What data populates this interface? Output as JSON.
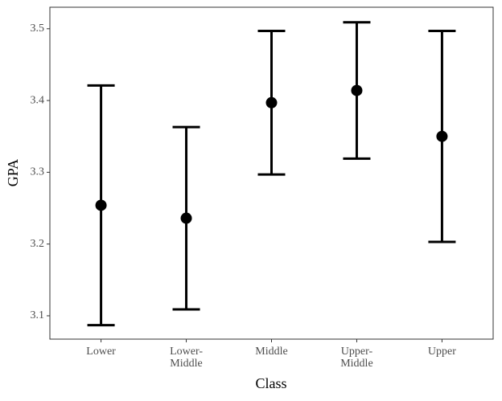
{
  "chart_data": {
    "type": "errorbar",
    "x_label": "Class",
    "y_label": "GPA",
    "categories": [
      "Lower",
      "Lower-\nMiddle",
      "Middle",
      "Upper-\nMiddle",
      "Upper"
    ],
    "values": [
      3.254,
      3.236,
      3.397,
      3.414,
      3.35
    ],
    "errors": [
      0.167,
      0.127,
      0.1,
      0.095,
      0.147
    ],
    "color": "#000000",
    "ylim": [
      3.0675,
      3.53
    ],
    "yticks": [
      3.1,
      3.2,
      3.3,
      3.4,
      3.5
    ]
  }
}
